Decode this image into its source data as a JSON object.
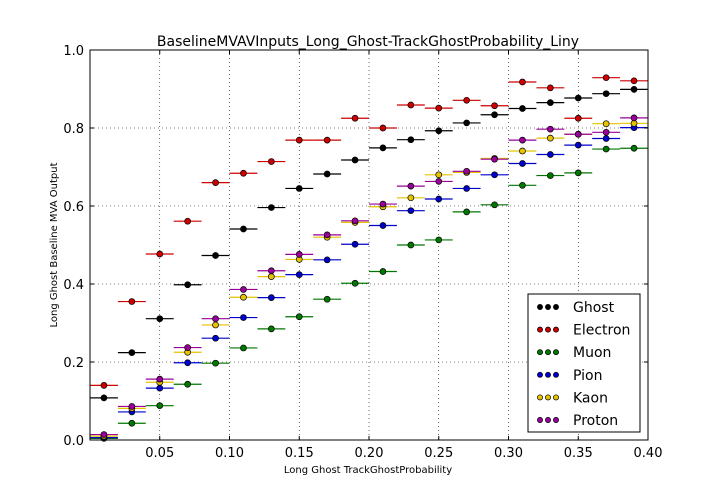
{
  "chart_data": {
    "type": "scatter",
    "title": "BaselineMVAVInputs_Long_Ghost-TrackGhostProbability_Liny",
    "xlabel": "Long Ghost TrackGhostProbability",
    "ylabel": "Long Ghost Baseline MVA Output",
    "xlim": [
      0.0,
      0.4
    ],
    "ylim": [
      0.0,
      1.0
    ],
    "xticks": [
      0.05,
      0.1,
      0.15,
      0.2,
      0.25,
      0.3,
      0.35,
      0.4
    ],
    "xtick_labels": [
      "0.05",
      "0.10",
      "0.15",
      "0.20",
      "0.25",
      "0.30",
      "0.35",
      "0.40"
    ],
    "yticks": [
      0.0,
      0.2,
      0.4,
      0.6,
      0.8,
      1.0
    ],
    "ytick_labels": [
      "0.0",
      "0.2",
      "0.4",
      "0.6",
      "0.8",
      "1.0"
    ],
    "grid": true,
    "legend_position": "lower-right",
    "bin_halfwidth": 0.01,
    "x": [
      0.01,
      0.03,
      0.05,
      0.07,
      0.09,
      0.11,
      0.13,
      0.15,
      0.17,
      0.19,
      0.21,
      0.23,
      0.25,
      0.27,
      0.29,
      0.31,
      0.33,
      0.35,
      0.37,
      0.39
    ],
    "series": [
      {
        "name": "Ghost",
        "color": "#000000",
        "values": [
          0.108,
          0.224,
          0.311,
          0.398,
          0.473,
          0.541,
          0.596,
          0.645,
          0.682,
          0.718,
          0.749,
          0.77,
          0.793,
          0.813,
          0.834,
          0.85,
          0.865,
          0.877,
          0.888,
          0.899
        ]
      },
      {
        "name": "Electron",
        "color": "#cc0000",
        "values": [
          0.14,
          0.355,
          0.477,
          0.561,
          0.66,
          0.684,
          0.714,
          0.769,
          0.769,
          0.825,
          0.8,
          0.859,
          0.851,
          0.871,
          0.857,
          0.918,
          0.903,
          0.825,
          0.929,
          0.921
        ]
      },
      {
        "name": "Muon",
        "color": "#007700",
        "values": [
          0.004,
          0.043,
          0.088,
          0.143,
          0.197,
          0.236,
          0.285,
          0.316,
          0.361,
          0.402,
          0.432,
          0.5,
          0.513,
          0.585,
          0.603,
          0.653,
          0.678,
          0.685,
          0.746,
          0.748
        ]
      },
      {
        "name": "Pion",
        "color": "#0000cc",
        "values": [
          0.006,
          0.072,
          0.133,
          0.198,
          0.261,
          0.314,
          0.365,
          0.424,
          0.462,
          0.502,
          0.55,
          0.588,
          0.618,
          0.645,
          0.68,
          0.709,
          0.732,
          0.756,
          0.773,
          0.801
        ]
      },
      {
        "name": "Kaon",
        "color": "#e6c200",
        "values": [
          0.01,
          0.081,
          0.148,
          0.225,
          0.295,
          0.366,
          0.419,
          0.463,
          0.52,
          0.558,
          0.598,
          0.621,
          0.68,
          0.686,
          0.722,
          0.741,
          0.774,
          0.784,
          0.811,
          0.812
        ]
      },
      {
        "name": "Proton",
        "color": "#990099",
        "values": [
          0.014,
          0.086,
          0.156,
          0.237,
          0.311,
          0.386,
          0.434,
          0.476,
          0.526,
          0.562,
          0.605,
          0.651,
          0.663,
          0.689,
          0.72,
          0.769,
          0.797,
          0.784,
          0.789,
          0.826
        ]
      }
    ]
  }
}
